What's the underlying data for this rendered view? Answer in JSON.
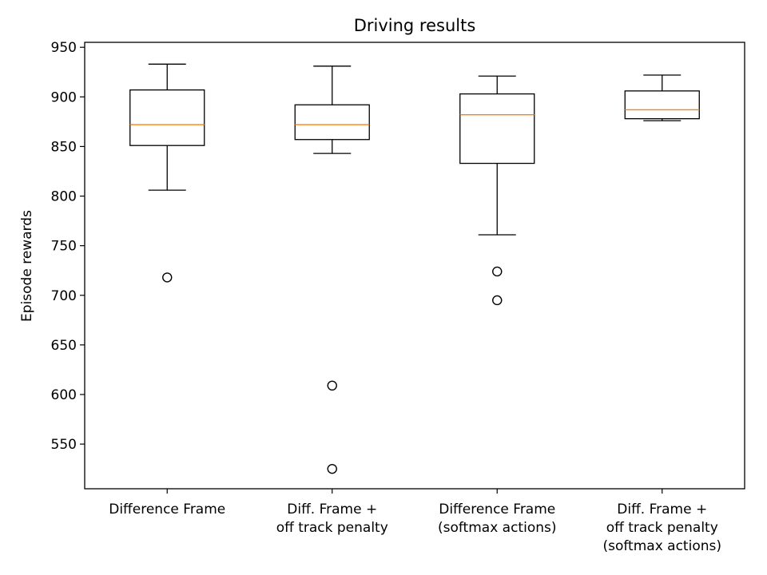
{
  "chart_data": {
    "type": "box",
    "title": "Driving results",
    "xlabel": "",
    "ylabel": "Episode rewards",
    "ylim": [
      505,
      955
    ],
    "yticks": [
      550,
      600,
      650,
      700,
      750,
      800,
      850,
      900,
      950
    ],
    "grid": false,
    "categories": [
      [
        "Difference Frame"
      ],
      [
        "Diff. Frame +",
        "off track penalty"
      ],
      [
        "Difference Frame",
        "(softmax actions)"
      ],
      [
        "Diff. Frame +",
        "off track penalty",
        "(softmax actions)"
      ]
    ],
    "boxes": [
      {
        "whisker_low": 806,
        "q1": 851,
        "median": 872,
        "q3": 907,
        "whisker_high": 933,
        "outliers": [
          718
        ]
      },
      {
        "whisker_low": 843,
        "q1": 857,
        "median": 872,
        "q3": 892,
        "whisker_high": 931,
        "outliers": [
          609,
          525
        ]
      },
      {
        "whisker_low": 761,
        "q1": 833,
        "median": 882,
        "q3": 903,
        "whisker_high": 921,
        "outliers": [
          724,
          695
        ]
      },
      {
        "whisker_low": 876,
        "q1": 878,
        "median": 887,
        "q3": 906,
        "whisker_high": 922,
        "outliers": []
      }
    ],
    "colors": {
      "box": "#000000",
      "median": "#ff7f0e",
      "outlier": "#000000"
    }
  }
}
